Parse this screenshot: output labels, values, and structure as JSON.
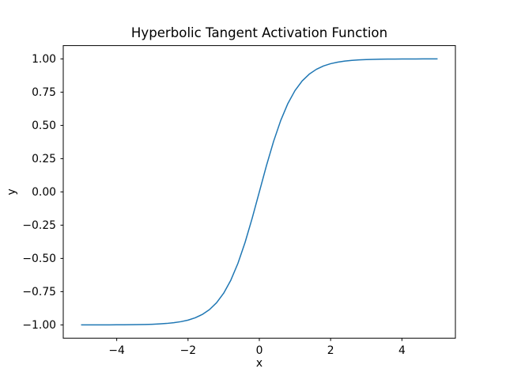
{
  "chart_data": {
    "type": "line",
    "title": "Hyperbolic Tangent Activation Function",
    "xlabel": "x",
    "ylabel": "y",
    "xlim": [
      -5.5,
      5.5
    ],
    "ylim": [
      -1.1,
      1.1
    ],
    "xticks": [
      -4,
      -2,
      0,
      2,
      4
    ],
    "xtick_labels": [
      "−4",
      "−2",
      "0",
      "2",
      "4"
    ],
    "yticks": [
      1.0,
      0.75,
      0.5,
      0.25,
      0.0,
      -0.25,
      -0.5,
      -0.75,
      -1.0
    ],
    "ytick_labels": [
      "1.00",
      "0.75",
      "0.50",
      "0.25",
      "0.00",
      "−0.25",
      "−0.50",
      "−0.75",
      "−1.00"
    ],
    "grid": false,
    "legend_position": "none",
    "background_color": "#ffffff",
    "spine_color": "#000000",
    "series": [
      {
        "color": "#1f77b4",
        "line_width": 1.5,
        "x": [
          -5.0,
          -4.8,
          -4.6,
          -4.4,
          -4.2,
          -4.0,
          -3.8,
          -3.6,
          -3.4,
          -3.2,
          -3.0,
          -2.8,
          -2.6,
          -2.4,
          -2.2,
          -2.0,
          -1.8,
          -1.6,
          -1.4,
          -1.2,
          -1.0,
          -0.8,
          -0.6,
          -0.4,
          -0.2,
          0.0,
          0.2,
          0.4,
          0.6,
          0.8,
          1.0,
          1.2,
          1.4,
          1.6,
          1.8,
          2.0,
          2.2,
          2.4,
          2.6,
          2.8,
          3.0,
          3.2,
          3.4,
          3.6,
          3.8,
          4.0,
          4.2,
          4.4,
          4.6,
          4.8,
          5.0
        ],
        "y": [
          -0.99991,
          -0.99986,
          -0.9998,
          -0.9997,
          -0.99955,
          -0.99933,
          -0.999,
          -0.99851,
          -0.99777,
          -0.99668,
          -0.99505,
          -0.99263,
          -0.98903,
          -0.98367,
          -0.97574,
          -0.96403,
          -0.94681,
          -0.92167,
          -0.88535,
          -0.83365,
          -0.76159,
          -0.66404,
          -0.53705,
          -0.37995,
          -0.19738,
          0.0,
          0.19738,
          0.37995,
          0.53705,
          0.66404,
          0.76159,
          0.83365,
          0.88535,
          0.92167,
          0.94681,
          0.96403,
          0.97574,
          0.98367,
          0.98903,
          0.99263,
          0.99505,
          0.99668,
          0.99777,
          0.99851,
          0.999,
          0.99933,
          0.99955,
          0.9997,
          0.9998,
          0.99986,
          0.99991
        ]
      }
    ]
  }
}
